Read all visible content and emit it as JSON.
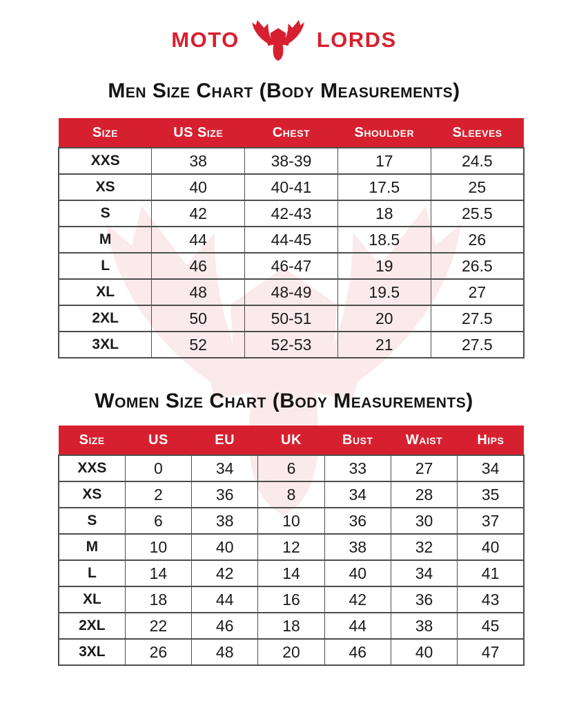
{
  "brand": {
    "name_left": "MOTO",
    "name_right": "LORDS",
    "icon": "bull-head-horns-logo-icon",
    "logo_color": "#d7202f"
  },
  "colors": {
    "accent_red": "#d7202f",
    "header_text": "#ffffff",
    "body_text": "#1a1a1a",
    "table_border": "#4d4d4d",
    "watermark_tint": "#d7202f"
  },
  "men_chart": {
    "title": "Men Size Chart (Body Measurements)",
    "columns": [
      "Size",
      "US Size",
      "Chest",
      "Shoulder",
      "Sleeves"
    ],
    "rows": [
      [
        "XXS",
        "38",
        "38-39",
        "17",
        "24.5"
      ],
      [
        "XS",
        "40",
        "40-41",
        "17.5",
        "25"
      ],
      [
        "S",
        "42",
        "42-43",
        "18",
        "25.5"
      ],
      [
        "M",
        "44",
        "44-45",
        "18.5",
        "26"
      ],
      [
        "L",
        "46",
        "46-47",
        "19",
        "26.5"
      ],
      [
        "XL",
        "48",
        "48-49",
        "19.5",
        "27"
      ],
      [
        "2XL",
        "50",
        "50-51",
        "20",
        "27.5"
      ],
      [
        "3XL",
        "52",
        "52-53",
        "21",
        "27.5"
      ]
    ]
  },
  "women_chart": {
    "title": "Women Size Chart (Body Measurements)",
    "columns": [
      "Size",
      "US",
      "EU",
      "UK",
      "Bust",
      "Waist",
      "Hips"
    ],
    "rows": [
      [
        "XXS",
        "0",
        "34",
        "6",
        "33",
        "27",
        "34"
      ],
      [
        "XS",
        "2",
        "36",
        "8",
        "34",
        "28",
        "35"
      ],
      [
        "S",
        "6",
        "38",
        "10",
        "36",
        "30",
        "37"
      ],
      [
        "M",
        "10",
        "40",
        "12",
        "38",
        "32",
        "40"
      ],
      [
        "L",
        "14",
        "42",
        "14",
        "40",
        "34",
        "41"
      ],
      [
        "XL",
        "18",
        "44",
        "16",
        "42",
        "36",
        "43"
      ],
      [
        "2XL",
        "22",
        "46",
        "18",
        "44",
        "38",
        "45"
      ],
      [
        "3XL",
        "26",
        "48",
        "20",
        "46",
        "40",
        "47"
      ]
    ]
  }
}
